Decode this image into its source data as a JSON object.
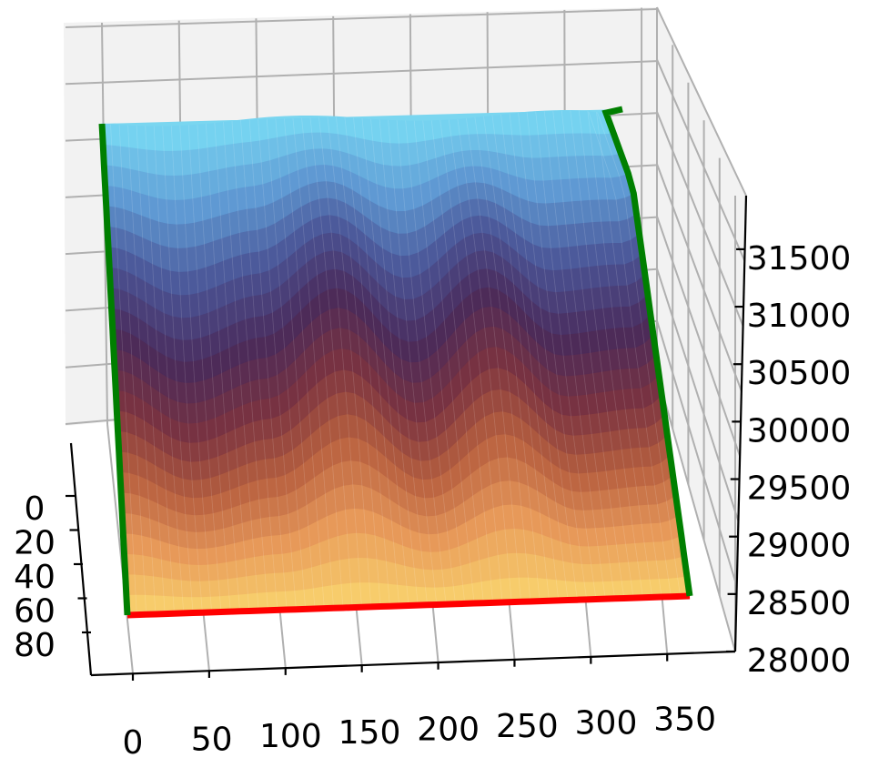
{
  "chart_data": {
    "type": "surface3d",
    "x": {
      "label": "",
      "range": [
        0,
        360
      ],
      "ticks": [
        0,
        50,
        100,
        150,
        200,
        250,
        300,
        350
      ]
    },
    "y": {
      "label": "",
      "range": [
        0,
        80
      ],
      "ticks": [
        0,
        20,
        40,
        60,
        80
      ]
    },
    "z": {
      "label": "",
      "range": [
        28000,
        31800
      ],
      "ticks": [
        28000,
        28500,
        29000,
        29500,
        30000,
        30500,
        31000,
        31500
      ]
    },
    "grid": true,
    "colormap": [
      "#fad46e",
      "#e89a5a",
      "#b8603f",
      "#7a3340",
      "#4a2a5a",
      "#4a5294",
      "#5f9ad4",
      "#79dcf5"
    ],
    "edge_colors": {
      "bottom_edge": "#ff0000",
      "side_edges": "#007f00"
    },
    "surface_profile": {
      "description_values_along_x": [
        0,
        50,
        100,
        150,
        200,
        250,
        300,
        350,
        360
      ],
      "mid_height_offset": [
        0.0,
        0.25,
        0.1,
        -0.25,
        0.15,
        -0.25,
        0.15,
        0.1,
        0.0
      ]
    }
  }
}
